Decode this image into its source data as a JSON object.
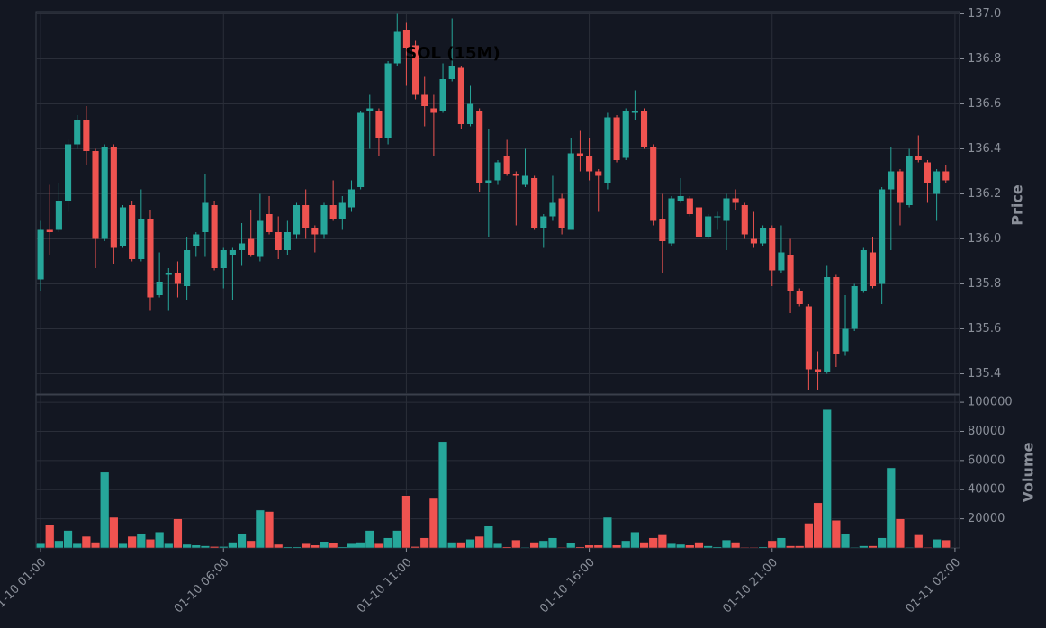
{
  "chart_data": {
    "type": "candlestick",
    "title": "SOL (15M)",
    "ylabel": "Price",
    "volume_label": "Volume",
    "up_color": "#26a69a",
    "down_color": "#ef5350",
    "grid": true,
    "x": [
      "01-10 01:00",
      "01-10 01:15",
      "01-10 01:30",
      "01-10 01:45",
      "01-10 02:00",
      "01-10 02:15",
      "01-10 02:30",
      "01-10 02:45",
      "01-10 03:00",
      "01-10 03:15",
      "01-10 03:30",
      "01-10 03:45",
      "01-10 04:00",
      "01-10 04:15",
      "01-10 04:30",
      "01-10 04:45",
      "01-10 05:00",
      "01-10 05:15",
      "01-10 05:30",
      "01-10 05:45",
      "01-10 06:00",
      "01-10 06:15",
      "01-10 06:30",
      "01-10 06:45",
      "01-10 07:00",
      "01-10 07:15",
      "01-10 07:30",
      "01-10 07:45",
      "01-10 08:00",
      "01-10 08:15",
      "01-10 08:30",
      "01-10 08:45",
      "01-10 09:00",
      "01-10 09:15",
      "01-10 09:30",
      "01-10 09:45",
      "01-10 10:00",
      "01-10 10:15",
      "01-10 10:30",
      "01-10 10:45",
      "01-10 11:00",
      "01-10 11:15",
      "01-10 11:30",
      "01-10 11:45",
      "01-10 12:00",
      "01-10 12:15",
      "01-10 12:30",
      "01-10 12:45",
      "01-10 13:00",
      "01-10 13:15",
      "01-10 13:30",
      "01-10 13:45",
      "01-10 14:00",
      "01-10 14:15",
      "01-10 14:30",
      "01-10 14:45",
      "01-10 15:00",
      "01-10 15:15",
      "01-10 15:30",
      "01-10 15:45",
      "01-10 16:00",
      "01-10 16:15",
      "01-10 16:30",
      "01-10 16:45",
      "01-10 17:00",
      "01-10 17:15",
      "01-10 17:30",
      "01-10 17:45",
      "01-10 18:00",
      "01-10 18:15",
      "01-10 18:30",
      "01-10 18:45",
      "01-10 19:00",
      "01-10 19:15",
      "01-10 19:30",
      "01-10 19:45",
      "01-10 20:00",
      "01-10 20:15",
      "01-10 20:30",
      "01-10 20:45",
      "01-10 21:00",
      "01-10 21:15",
      "01-10 21:30",
      "01-10 21:45",
      "01-10 22:00",
      "01-10 22:15",
      "01-10 22:30",
      "01-10 22:45",
      "01-10 23:00",
      "01-10 23:15",
      "01-10 23:30",
      "01-10 23:45",
      "01-11 00:00",
      "01-11 00:15",
      "01-11 00:30",
      "01-11 00:45",
      "01-11 01:00",
      "01-11 01:15",
      "01-11 01:30",
      "01-11 01:45"
    ],
    "open": [
      135.82,
      136.04,
      136.04,
      136.17,
      136.42,
      136.53,
      136.39,
      136.0,
      136.41,
      135.97,
      136.15,
      135.91,
      136.09,
      135.75,
      135.84,
      135.85,
      135.79,
      135.97,
      136.03,
      136.15,
      135.87,
      135.93,
      135.95,
      136.0,
      135.92,
      136.11,
      136.03,
      135.95,
      136.02,
      136.15,
      136.05,
      136.02,
      136.15,
      136.09,
      136.14,
      136.23,
      136.57,
      136.57,
      136.45,
      136.78,
      136.93,
      136.86,
      136.64,
      136.58,
      136.57,
      136.71,
      136.76,
      136.51,
      136.57,
      136.25,
      136.26,
      136.37,
      136.29,
      136.24,
      136.27,
      136.05,
      136.1,
      136.18,
      136.04,
      136.38,
      136.37,
      136.3,
      136.25,
      136.54,
      136.36,
      136.56,
      136.57,
      136.41,
      136.09,
      135.98,
      136.17,
      136.18,
      136.14,
      136.01,
      136.1,
      136.08,
      136.18,
      136.15,
      136.0,
      135.98,
      136.05,
      135.86,
      135.93,
      135.77,
      135.7,
      135.42,
      135.41,
      135.83,
      135.5,
      135.6,
      135.77,
      135.94,
      135.8,
      136.22,
      136.3,
      136.15,
      136.37,
      136.34,
      136.2,
      136.3
    ],
    "high": [
      136.08,
      136.24,
      136.25,
      136.44,
      136.55,
      136.59,
      136.4,
      136.42,
      136.42,
      136.15,
      136.17,
      136.22,
      136.13,
      135.94,
      135.87,
      135.9,
      136.01,
      136.03,
      136.29,
      136.17,
      135.96,
      135.96,
      136.07,
      136.13,
      136.2,
      136.19,
      136.1,
      136.08,
      136.16,
      136.22,
      136.06,
      136.16,
      136.26,
      136.19,
      136.26,
      136.57,
      136.64,
      136.58,
      136.79,
      137.0,
      136.96,
      136.88,
      136.72,
      136.64,
      136.78,
      136.98,
      136.77,
      136.68,
      136.58,
      136.49,
      136.35,
      136.44,
      136.3,
      136.4,
      136.28,
      136.11,
      136.28,
      136.2,
      136.45,
      136.48,
      136.45,
      136.31,
      136.56,
      136.55,
      136.58,
      136.66,
      136.58,
      136.42,
      136.2,
      136.19,
      136.27,
      136.19,
      136.15,
      136.11,
      136.12,
      136.2,
      136.22,
      136.16,
      136.12,
      136.06,
      136.06,
      136.06,
      136.0,
      135.78,
      135.71,
      135.5,
      135.88,
      135.84,
      135.75,
      135.8,
      135.96,
      136.01,
      136.23,
      136.41,
      136.31,
      136.4,
      136.46,
      136.35,
      136.31,
      136.33
    ],
    "low": [
      135.77,
      135.93,
      136.03,
      136.12,
      136.4,
      136.33,
      135.87,
      135.99,
      135.89,
      135.96,
      135.9,
      135.9,
      135.68,
      135.74,
      135.68,
      135.74,
      135.73,
      135.92,
      135.92,
      135.86,
      135.78,
      135.73,
      135.88,
      135.92,
      135.9,
      136.02,
      135.91,
      135.93,
      136.0,
      136.0,
      135.94,
      136.0,
      136.08,
      136.04,
      136.12,
      136.22,
      136.4,
      136.37,
      136.42,
      136.77,
      136.68,
      136.62,
      136.5,
      136.37,
      136.56,
      136.7,
      136.49,
      136.5,
      136.21,
      136.01,
      136.24,
      136.28,
      136.06,
      136.23,
      136.04,
      135.96,
      136.08,
      136.02,
      136.04,
      136.3,
      136.26,
      136.12,
      136.22,
      136.34,
      136.35,
      136.53,
      136.4,
      136.06,
      135.85,
      135.97,
      136.16,
      136.1,
      135.94,
      136.0,
      136.04,
      135.95,
      136.13,
      136.0,
      135.96,
      135.97,
      135.79,
      135.85,
      135.67,
      135.7,
      135.33,
      135.33,
      135.4,
      135.43,
      135.48,
      135.59,
      135.76,
      135.78,
      135.71,
      135.95,
      136.06,
      136.14,
      136.34,
      136.16,
      136.08,
      136.25
    ],
    "close": [
      136.04,
      136.03,
      136.17,
      136.42,
      136.53,
      136.39,
      136.0,
      136.41,
      135.96,
      136.14,
      135.91,
      136.09,
      135.74,
      135.81,
      135.85,
      135.8,
      135.95,
      136.02,
      136.16,
      135.87,
      135.95,
      135.95,
      135.98,
      135.93,
      136.08,
      136.03,
      135.95,
      136.03,
      136.15,
      136.05,
      136.02,
      136.15,
      136.09,
      136.16,
      136.22,
      136.56,
      136.58,
      136.45,
      136.78,
      136.92,
      136.85,
      136.64,
      136.59,
      136.56,
      136.71,
      136.77,
      136.51,
      136.6,
      136.25,
      136.26,
      136.34,
      136.29,
      136.28,
      136.28,
      136.05,
      136.1,
      136.16,
      136.05,
      136.38,
      136.37,
      136.3,
      136.28,
      136.54,
      136.35,
      136.57,
      136.57,
      136.41,
      136.08,
      135.99,
      136.18,
      136.19,
      136.11,
      136.01,
      136.1,
      136.1,
      136.18,
      136.16,
      136.02,
      135.98,
      136.05,
      135.86,
      135.94,
      135.77,
      135.71,
      135.42,
      135.41,
      135.83,
      135.49,
      135.6,
      135.79,
      135.95,
      135.79,
      136.22,
      136.3,
      136.16,
      136.37,
      136.35,
      136.25,
      136.3,
      136.26
    ],
    "volume": [
      3000,
      16000,
      5000,
      12000,
      3000,
      8000,
      4000,
      52000,
      21000,
      3000,
      8000,
      10000,
      6000,
      11000,
      3000,
      20000,
      2500,
      2000,
      1500,
      1000,
      1000,
      4000,
      10000,
      5000,
      26000,
      25000,
      2500,
      800,
      800,
      3000,
      2000,
      4500,
      3500,
      800,
      3000,
      4000,
      12000,
      3000,
      7000,
      12000,
      36000,
      1000,
      7000,
      34000,
      73000,
      4000,
      4000,
      6000,
      8000,
      15000,
      3000,
      800,
      5500,
      500,
      4000,
      5000,
      7000,
      500,
      3500,
      800,
      2000,
      2000,
      21000,
      2000,
      5000,
      11000,
      4000,
      7000,
      9000,
      3000,
      2500,
      2000,
      4000,
      1500,
      800,
      5500,
      4000,
      500,
      500,
      800,
      5000,
      7000,
      1500,
      1500,
      17000,
      31000,
      95000,
      19000,
      10000,
      500,
      1500,
      1500,
      7000,
      55000,
      20000,
      500,
      9000,
      500,
      6000,
      5500
    ],
    "xlim": [
      -0.5,
      100.5
    ],
    "xticks": [
      {
        "value": 0,
        "label": "01-10 01:00"
      },
      {
        "value": 20,
        "label": "01-10 06:00"
      },
      {
        "value": 40,
        "label": "01-10 11:00"
      },
      {
        "value": 60,
        "label": "01-10 16:00"
      },
      {
        "value": 80,
        "label": "01-10 21:00"
      },
      {
        "value": 100,
        "label": "01-11 02:00"
      }
    ],
    "ylim": [
      135.31,
      137.01
    ],
    "yticks": [
      {
        "value": 135.4,
        "label": "135.4"
      },
      {
        "value": 135.6,
        "label": "135.6"
      },
      {
        "value": 135.8,
        "label": "135.8"
      },
      {
        "value": 136.0,
        "label": "136.0"
      },
      {
        "value": 136.2,
        "label": "136.2"
      },
      {
        "value": 136.4,
        "label": "136.4"
      },
      {
        "value": 136.6,
        "label": "136.6"
      },
      {
        "value": 136.8,
        "label": "136.8"
      },
      {
        "value": 137.0,
        "label": "137.0"
      }
    ],
    "volume_ylim": [
      0,
      105000
    ],
    "volume_yticks": [
      20000,
      40000,
      60000,
      80000,
      100000
    ]
  }
}
